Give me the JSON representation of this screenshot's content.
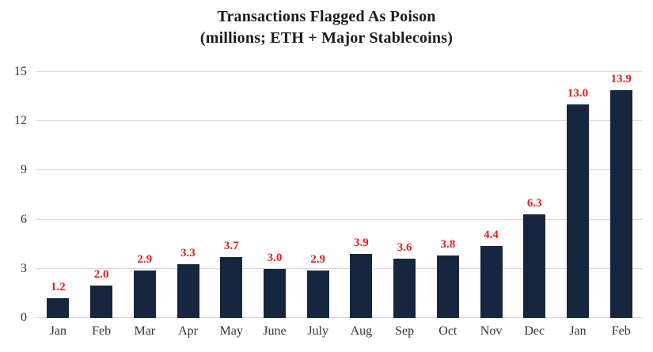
{
  "chart_data": {
    "type": "bar",
    "title": "Transactions Flagged As Poison",
    "subtitle": "(millions; ETH + Major Stablecoins)",
    "categories": [
      "Jan",
      "Feb",
      "Mar",
      "Apr",
      "May",
      "June",
      "July",
      "Aug",
      "Sep",
      "Oct",
      "Nov",
      "Dec",
      "Jan",
      "Feb"
    ],
    "values": [
      1.2,
      2.0,
      2.9,
      3.3,
      3.7,
      3.0,
      2.9,
      3.9,
      3.6,
      3.8,
      4.4,
      6.3,
      13.0,
      13.9
    ],
    "data_labels": [
      "1.2",
      "2.0",
      "2.9",
      "3.3",
      "3.7",
      "3.0",
      "2.9",
      "3.9",
      "3.6",
      "3.8",
      "4.4",
      "6.3",
      "13.0",
      "13.9"
    ],
    "xlabel": "",
    "ylabel": "",
    "ylim": [
      0,
      15
    ],
    "yticks": [
      0,
      3,
      6,
      9,
      12,
      15
    ],
    "grid": true,
    "legend_position": "none",
    "colors": {
      "bar": "#16263f",
      "data_label": "#e02020",
      "gridline": "#d9d9d9",
      "axis_text": "#333333",
      "title_text": "#1a1a1a",
      "background": "#ffffff"
    }
  }
}
